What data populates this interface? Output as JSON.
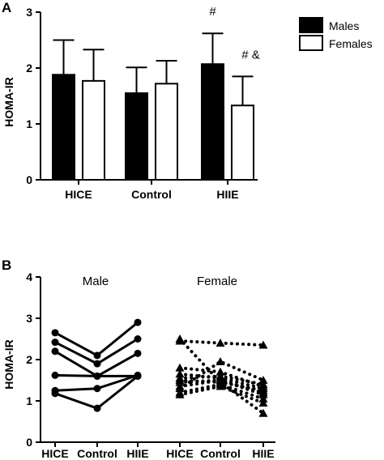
{
  "chart_data": [
    {
      "panel": "A",
      "type": "bar",
      "ylabel": "HOMA-IR",
      "ylim": [
        0,
        3
      ],
      "yticks": [
        "0",
        "1",
        "2",
        "3"
      ],
      "categories": [
        "HICE",
        "Control",
        "HIIE"
      ],
      "series": [
        {
          "name": "Males",
          "color": "#000000",
          "values": [
            1.88,
            1.55,
            2.07
          ],
          "errors": [
            0.62,
            0.46,
            0.55
          ]
        },
        {
          "name": "Females",
          "color": "#ffffff",
          "values": [
            1.77,
            1.72,
            1.33
          ],
          "errors": [
            0.56,
            0.41,
            0.52
          ]
        }
      ],
      "annotations": [
        {
          "text": "#",
          "category": 2,
          "series": 0
        },
        {
          "text": "# &",
          "category": 2,
          "series": 1
        }
      ],
      "legend": "top-right"
    },
    {
      "panel": "B",
      "type": "line",
      "ylabel": "HOMA-IR",
      "ylim": [
        0,
        4
      ],
      "yticks": [
        "0",
        "1",
        "2",
        "3",
        "4"
      ],
      "groups": [
        {
          "label": "Male",
          "marker": "circle",
          "linestyle": "solid",
          "categories": [
            "HICE",
            "Control",
            "HIIE"
          ],
          "subjects": [
            [
              2.65,
              2.1,
              2.9
            ],
            [
              2.42,
              1.9,
              2.5
            ],
            [
              2.2,
              1.6,
              2.15
            ],
            [
              1.62,
              1.6,
              1.6
            ],
            [
              1.25,
              1.3,
              1.62
            ],
            [
              1.18,
              0.82,
              1.6
            ]
          ]
        },
        {
          "label": "Female",
          "marker": "triangle",
          "linestyle": "dotted",
          "categories": [
            "HICE",
            "Control",
            "HIIE"
          ],
          "subjects": [
            [
              2.5,
              1.45,
              0.7
            ],
            [
              2.45,
              2.4,
              2.35
            ],
            [
              1.3,
              1.95,
              1.5
            ],
            [
              1.8,
              1.7,
              1.35
            ],
            [
              1.65,
              1.55,
              1.3
            ],
            [
              1.55,
              1.6,
              1.4
            ],
            [
              1.35,
              1.5,
              1.2
            ],
            [
              1.5,
              1.45,
              1.25
            ],
            [
              1.45,
              1.5,
              1.15
            ],
            [
              1.2,
              1.4,
              1.05
            ],
            [
              1.15,
              1.35,
              0.95
            ]
          ]
        }
      ]
    }
  ]
}
